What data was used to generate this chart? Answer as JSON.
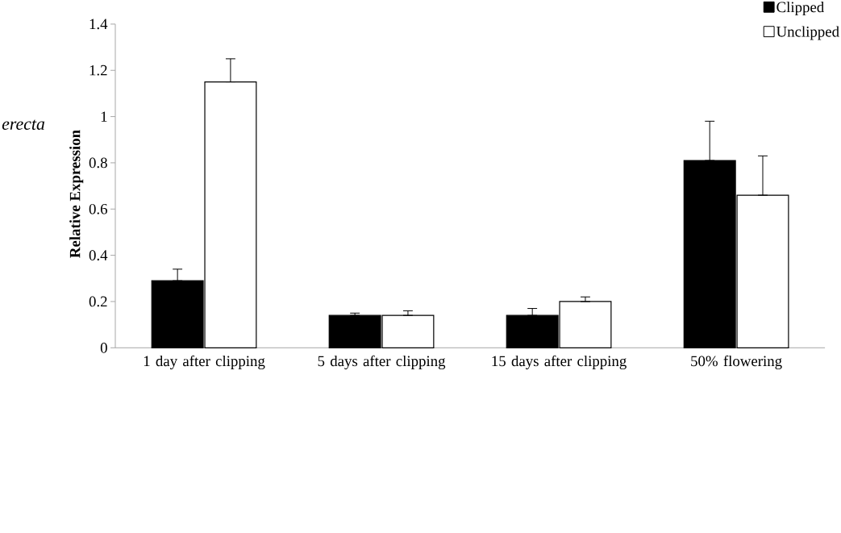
{
  "chart_data": {
    "type": "bar",
    "title": "erecta",
    "ylabel": "Relative Expression",
    "categories": [
      "1 day after clipping",
      "5 days after clipping",
      "15 days after clipping",
      "50% flowering"
    ],
    "series": [
      {
        "name": "Clipped",
        "color": "#000000",
        "values": [
          0.29,
          0.14,
          0.14,
          0.81
        ],
        "errors": [
          [
            0.29,
            0.34
          ],
          [
            0.14,
            0.15
          ],
          [
            0.14,
            0.17
          ],
          [
            0.81,
            0.98
          ]
        ]
      },
      {
        "name": "Unclipped",
        "color": "#ffffff",
        "values": [
          1.15,
          0.14,
          0.2,
          0.66
        ],
        "errors": [
          [
            1.15,
            1.25
          ],
          [
            0.14,
            0.16
          ],
          [
            0.2,
            0.22
          ],
          [
            0.66,
            0.83
          ]
        ]
      }
    ],
    "ylim": [
      0,
      1.4
    ],
    "yticks": [
      0,
      0.2,
      0.4,
      0.6,
      0.8,
      1,
      1.2,
      1.4
    ],
    "legend": "top right",
    "grid": false
  }
}
